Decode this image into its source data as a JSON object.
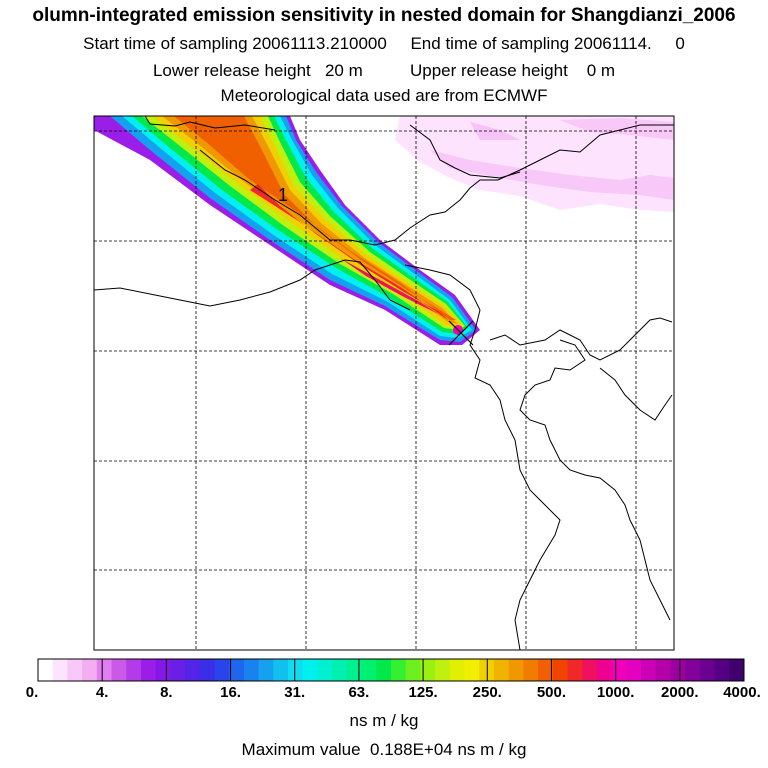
{
  "header": {
    "title": "olumn-integrated emission sensitivity in nested domain for Shangdianzi_2006",
    "start_label": "Start time of sampling 20061113.210000",
    "end_label": "End time of sampling 20061114.     0",
    "lower_label": "Lower release height   20 m",
    "upper_label": "Upper release height    0 m",
    "met_label": "Meteorological data used are from ECMWF"
  },
  "map": {
    "plume_label": "1",
    "receptor_marker": "x"
  },
  "chart_data": {
    "type": "heatmap",
    "title": "olumn-integrated emission sensitivity in nested domain for Shangdianzi_2006",
    "colorbar": {
      "ticks": [
        "0.",
        "4.",
        "8.",
        "16.",
        "31.",
        "63.",
        "125.",
        "250.",
        "500.",
        "1000.",
        "2000.",
        "4000."
      ],
      "unit": "ns m / kg",
      "colors": [
        "#ffffff",
        "#fde3fd",
        "#f8c8f8",
        "#f3adf3",
        "#e07df0",
        "#c95ae8",
        "#b33be8",
        "#9a1ee8",
        "#8418e6",
        "#6a1ee6",
        "#5424e8",
        "#3a2ee8",
        "#2a44ec",
        "#1e66ec",
        "#1a82ee",
        "#16a0f0",
        "#12c0f0",
        "#10dcf0",
        "#00f0f0",
        "#00f0d0",
        "#00f0b0",
        "#00f090",
        "#00f070",
        "#00e84a",
        "#34f030",
        "#6ef020",
        "#9af010",
        "#c0f010",
        "#e0f000",
        "#f0f000",
        "#f0d000",
        "#f0b400",
        "#f09800",
        "#f07c00",
        "#f06000",
        "#f04400",
        "#f02828",
        "#f01060",
        "#f00090",
        "#f000b8",
        "#e400c0",
        "#cc00b4",
        "#b400a8",
        "#9c00a0",
        "#84009a",
        "#6c0092",
        "#540084",
        "#40006c"
      ]
    },
    "max_value_label": "Maximum value  0.188E+04 ns m / kg"
  }
}
